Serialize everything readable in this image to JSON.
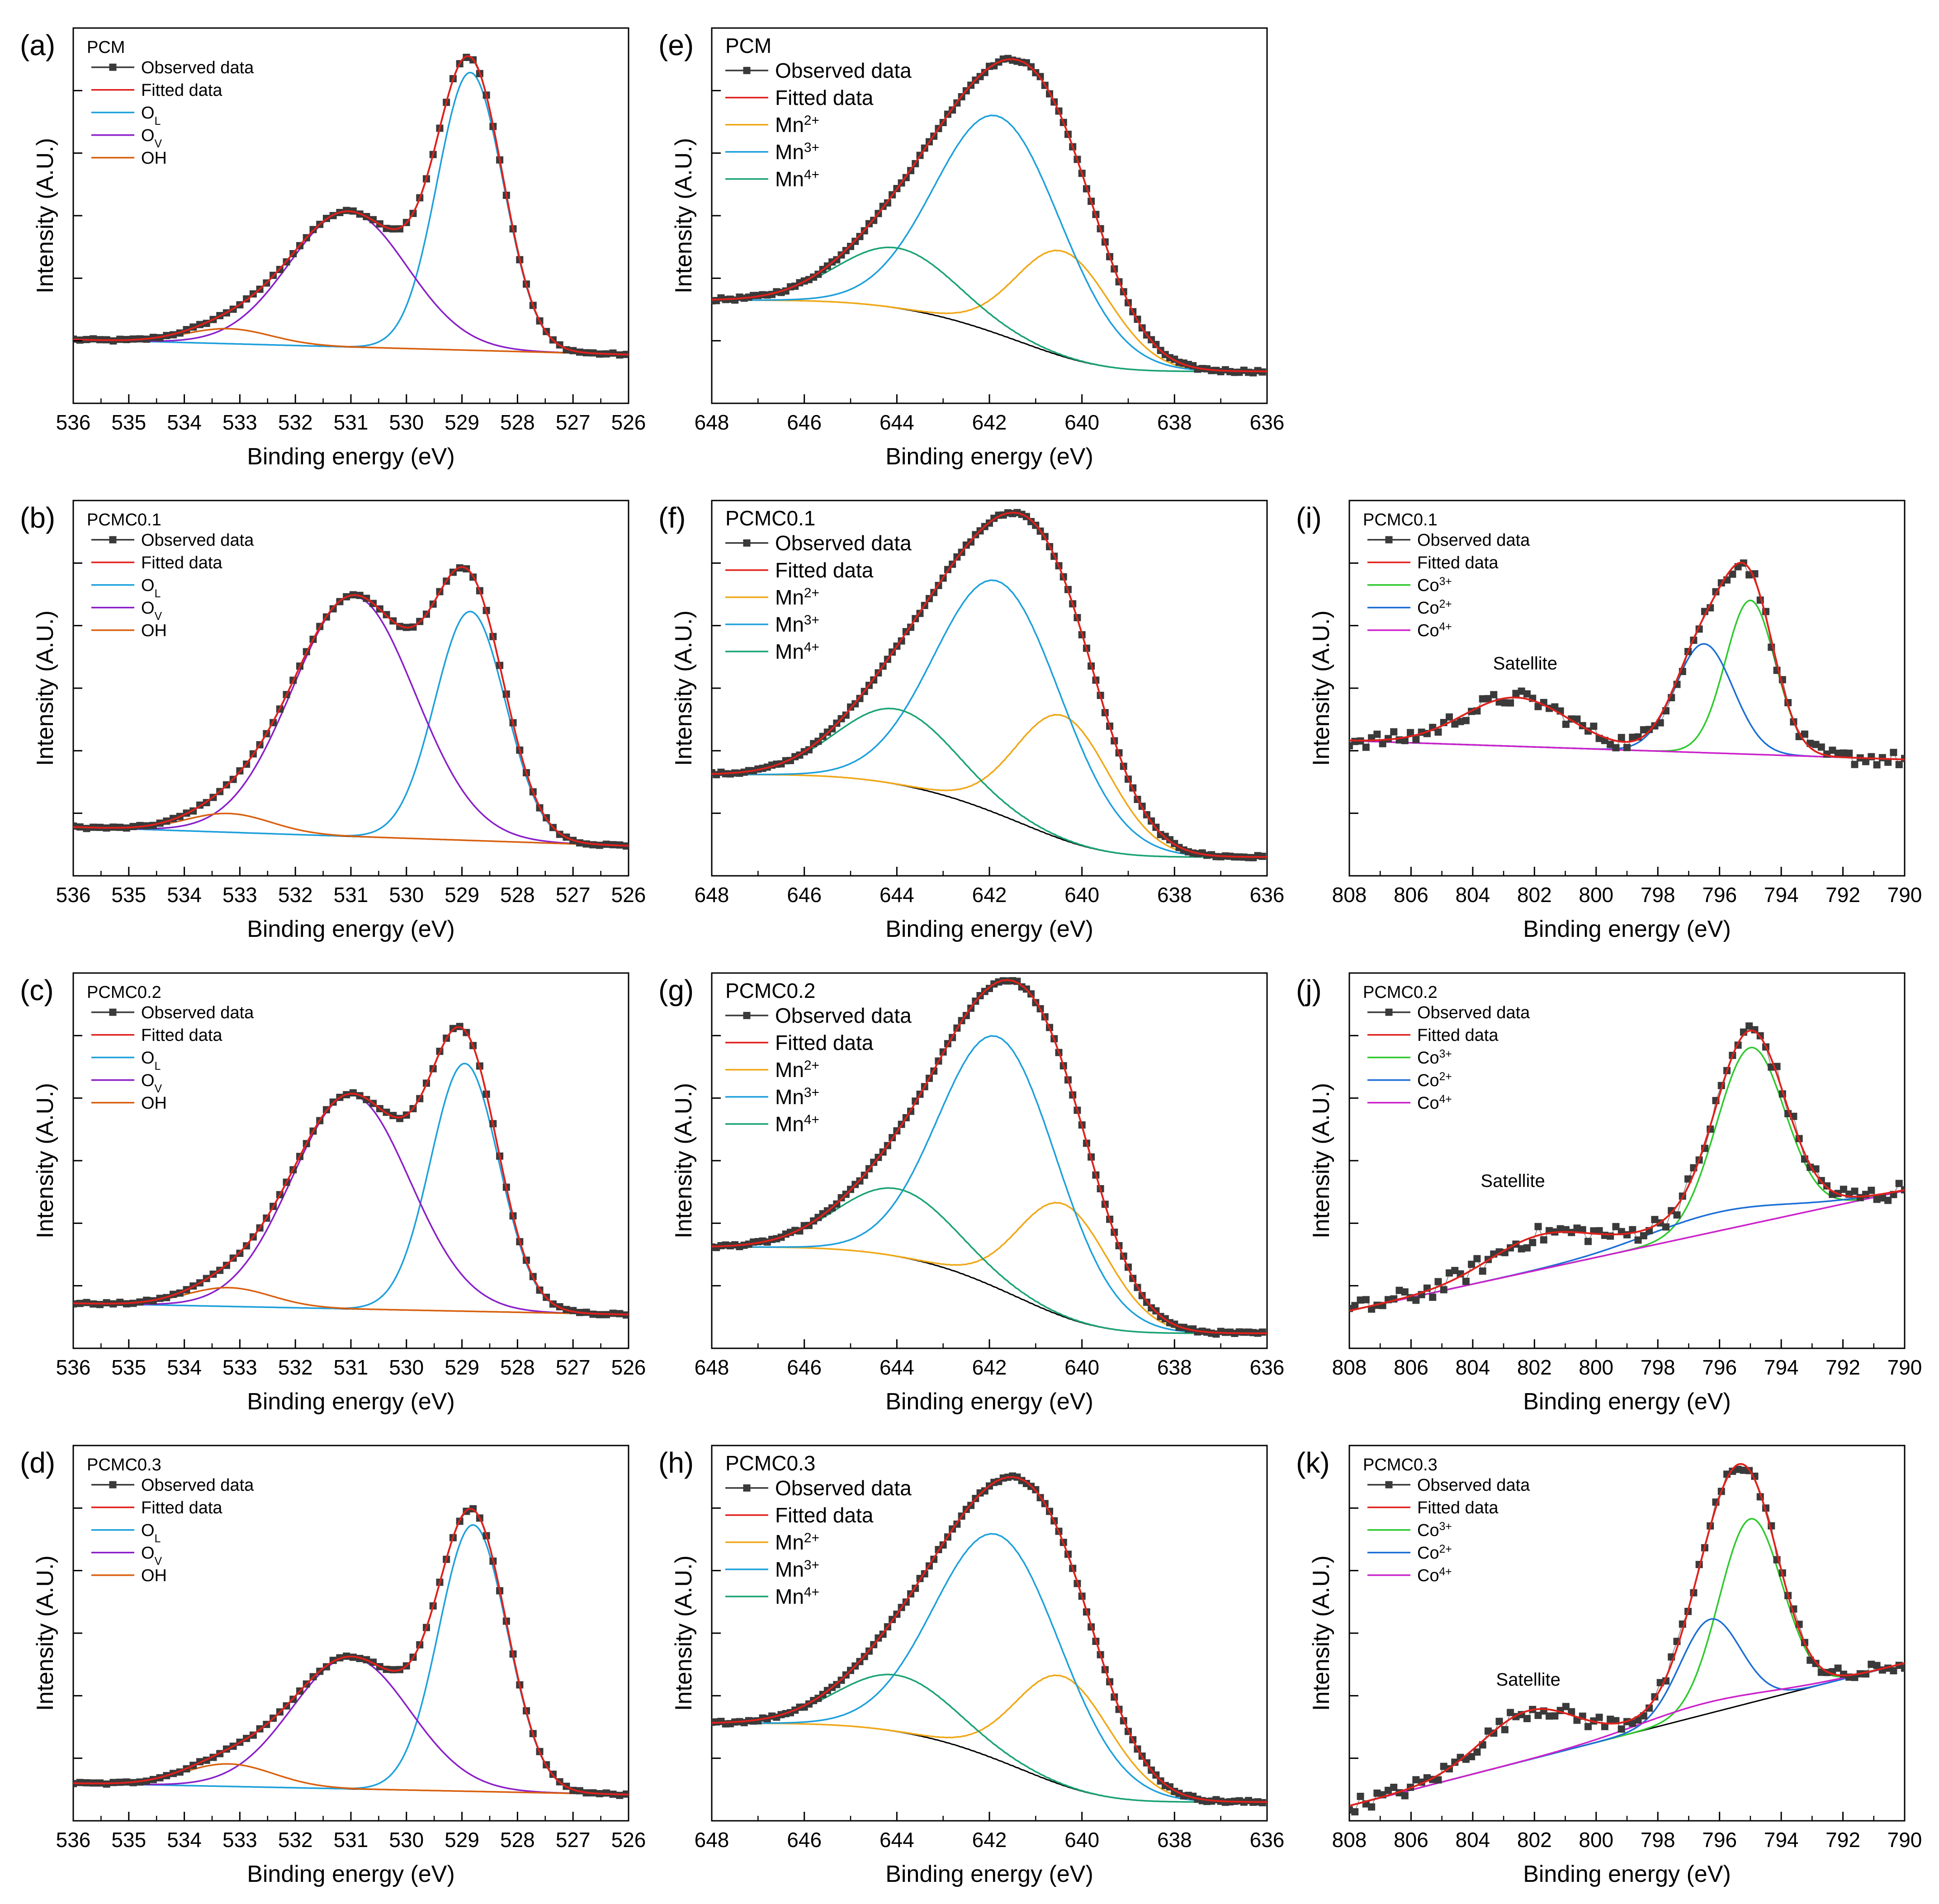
{
  "figure": {
    "x_axis_title": "Binding energy (eV)",
    "y_axis_title": "Intensity (A.U.)"
  },
  "legend_styles": {
    "Observed data": {
      "color": "#3a3a3a",
      "marker": true
    },
    "Fitted data": {
      "color": "#e0211c"
    },
    "O_L": {
      "color": "#1ea0dc"
    },
    "O_V": {
      "color": "#8a1fc9"
    },
    "OH": {
      "color": "#d9600f"
    },
    "Mn2+": {
      "color": "#f0a818"
    },
    "Mn3+": {
      "color": "#1ea0dc"
    },
    "Mn4+": {
      "color": "#1aa372"
    },
    "Co3+": {
      "color": "#2ec92e"
    },
    "Co2+": {
      "color": "#1c6ed6"
    },
    "Co4+": {
      "color": "#cc22cc"
    },
    "Background": {
      "color": "#000000"
    }
  },
  "chart_data": [
    {
      "panel_label": "(a)",
      "sample": "PCM",
      "type": "line",
      "xlim": [
        536,
        526
      ],
      "ylim": [
        0,
        1
      ],
      "xticks": [
        536,
        535,
        534,
        533,
        532,
        531,
        530,
        529,
        528,
        527,
        526
      ],
      "legend": [
        {
          "text": "Observed data",
          "style": "Observed data"
        },
        {
          "text": "Fitted data",
          "style": "Fitted data"
        },
        {
          "text": "O",
          "sub": "L",
          "style": "O_L"
        },
        {
          "text": "O",
          "sub": "V",
          "style": "O_V"
        },
        {
          "text": "OH",
          "style": "OH"
        }
      ],
      "background": {
        "type": "linear",
        "x": [
          536,
          526
        ],
        "y": [
          0.17,
          0.13
        ]
      },
      "components": [
        {
          "name": "O_L",
          "center": 528.85,
          "amplitude": 0.74,
          "fwhm": 1.4
        },
        {
          "name": "O_V",
          "center": 531.05,
          "amplitude": 0.36,
          "fwhm": 2.5
        },
        {
          "name": "OH",
          "center": 533.2,
          "amplitude": 0.04,
          "fwhm": 1.8
        }
      ],
      "noise": 0.003,
      "observed_step": 0.12
    },
    {
      "panel_label": "(b)",
      "sample": "PCMC0.1",
      "type": "line",
      "xlim": [
        536,
        526
      ],
      "ylim": [
        0,
        1
      ],
      "xticks": [
        536,
        535,
        534,
        533,
        532,
        531,
        530,
        529,
        528,
        527,
        526
      ],
      "legend": [
        {
          "text": "Observed data",
          "style": "Observed data"
        },
        {
          "text": "Fitted data",
          "style": "Fitted data"
        },
        {
          "text": "O",
          "sub": "L",
          "style": "O_L"
        },
        {
          "text": "O",
          "sub": "V",
          "style": "O_V"
        },
        {
          "text": "OH",
          "style": "OH"
        }
      ],
      "background": {
        "type": "linear",
        "x": [
          536,
          526
        ],
        "y": [
          0.13,
          0.08
        ]
      },
      "components": [
        {
          "name": "O_L",
          "center": 528.85,
          "amplitude": 0.61,
          "fwhm": 1.5
        },
        {
          "name": "O_V",
          "center": 530.95,
          "amplitude": 0.64,
          "fwhm": 2.6
        },
        {
          "name": "OH",
          "center": 533.2,
          "amplitude": 0.05,
          "fwhm": 1.8
        }
      ],
      "noise": 0.003,
      "observed_step": 0.12
    },
    {
      "panel_label": "(c)",
      "sample": "PCMC0.2",
      "type": "line",
      "xlim": [
        536,
        526
      ],
      "ylim": [
        0,
        1
      ],
      "xticks": [
        536,
        535,
        534,
        533,
        532,
        531,
        530,
        529,
        528,
        527,
        526
      ],
      "legend": [
        {
          "text": "Observed data",
          "style": "Observed data"
        },
        {
          "text": "Fitted data",
          "style": "Fitted data"
        },
        {
          "text": "O",
          "sub": "L",
          "style": "O_L"
        },
        {
          "text": "O",
          "sub": "V",
          "style": "O_V"
        },
        {
          "text": "OH",
          "style": "OH"
        }
      ],
      "background": {
        "type": "linear",
        "x": [
          536,
          526
        ],
        "y": [
          0.12,
          0.09
        ]
      },
      "components": [
        {
          "name": "O_L",
          "center": 528.95,
          "amplitude": 0.66,
          "fwhm": 1.45
        },
        {
          "name": "O_V",
          "center": 531.0,
          "amplitude": 0.57,
          "fwhm": 2.5
        },
        {
          "name": "OH",
          "center": 533.2,
          "amplitude": 0.05,
          "fwhm": 1.8
        }
      ],
      "noise": 0.003,
      "observed_step": 0.12
    },
    {
      "panel_label": "(d)",
      "sample": "PCMC0.3",
      "type": "line",
      "xlim": [
        536,
        526
      ],
      "ylim": [
        0,
        1
      ],
      "xticks": [
        536,
        535,
        534,
        533,
        532,
        531,
        530,
        529,
        528,
        527,
        526
      ],
      "legend": [
        {
          "text": "Observed data",
          "style": "Observed data"
        },
        {
          "text": "Fitted data",
          "style": "Fitted data"
        },
        {
          "text": "O",
          "sub": "L",
          "style": "O_L"
        },
        {
          "text": "O",
          "sub": "V",
          "style": "O_V"
        },
        {
          "text": "OH",
          "style": "OH"
        }
      ],
      "background": {
        "type": "linear",
        "x": [
          536,
          526
        ],
        "y": [
          0.1,
          0.07
        ]
      },
      "components": [
        {
          "name": "O_L",
          "center": 528.8,
          "amplitude": 0.71,
          "fwhm": 1.45
        },
        {
          "name": "O_V",
          "center": 531.0,
          "amplitude": 0.35,
          "fwhm": 2.5
        },
        {
          "name": "OH",
          "center": 533.2,
          "amplitude": 0.06,
          "fwhm": 1.9
        }
      ],
      "noise": 0.003,
      "observed_step": 0.12
    },
    {
      "panel_label": "(e)",
      "sample": "PCM",
      "type": "line",
      "xlim": [
        648,
        636
      ],
      "ylim": [
        0,
        1
      ],
      "xticks": [
        648,
        646,
        644,
        642,
        640,
        638,
        636
      ],
      "legend": [
        {
          "text": "Observed data",
          "style": "Observed data"
        },
        {
          "text": "Fitted data",
          "style": "Fitted data"
        },
        {
          "text": "Mn",
          "sup": "2+",
          "style": "Mn2+"
        },
        {
          "text": "Mn",
          "sup": "3+",
          "style": "Mn3+"
        },
        {
          "text": "Mn",
          "sup": "4+",
          "style": "Mn4+"
        }
      ],
      "background": {
        "type": "shirley",
        "high": 0.275,
        "low": 0.085,
        "x_low": 636.3
      },
      "components": [
        {
          "name": "Mn2+",
          "center": 640.4,
          "amplitude": 0.28,
          "fwhm": 2.4
        },
        {
          "name": "Mn3+",
          "center": 641.8,
          "amplitude": 0.58,
          "fwhm": 3.2
        },
        {
          "name": "Mn4+",
          "center": 644.0,
          "amplitude": 0.16,
          "fwhm": 3.0
        }
      ],
      "noise": 0.004,
      "observed_step": 0.1
    },
    {
      "panel_label": "(f)",
      "sample": "PCMC0.1",
      "type": "line",
      "xlim": [
        648,
        636
      ],
      "ylim": [
        0,
        1
      ],
      "xticks": [
        648,
        646,
        644,
        642,
        640,
        638,
        636
      ],
      "legend": [
        {
          "text": "Observed data",
          "style": "Observed data"
        },
        {
          "text": "Fitted data",
          "style": "Fitted data"
        },
        {
          "text": "Mn",
          "sup": "2+",
          "style": "Mn2+"
        },
        {
          "text": "Mn",
          "sup": "3+",
          "style": "Mn3+"
        },
        {
          "text": "Mn",
          "sup": "4+",
          "style": "Mn4+"
        }
      ],
      "background": {
        "type": "shirley",
        "high": 0.27,
        "low": 0.05,
        "x_low": 636.3
      },
      "components": [
        {
          "name": "Mn2+",
          "center": 640.4,
          "amplitude": 0.33,
          "fwhm": 2.4
        },
        {
          "name": "Mn3+",
          "center": 641.8,
          "amplitude": 0.62,
          "fwhm": 3.2
        },
        {
          "name": "Mn4+",
          "center": 644.0,
          "amplitude": 0.2,
          "fwhm": 3.0
        }
      ],
      "noise": 0.004,
      "observed_step": 0.1
    },
    {
      "panel_label": "(g)",
      "sample": "PCMC0.2",
      "type": "line",
      "xlim": [
        648,
        636
      ],
      "ylim": [
        0,
        1
      ],
      "xticks": [
        648,
        646,
        644,
        642,
        640,
        638,
        636
      ],
      "legend": [
        {
          "text": "Observed data",
          "style": "Observed data"
        },
        {
          "text": "Fitted data",
          "style": "Fitted data"
        },
        {
          "text": "Mn",
          "sup": "2+",
          "style": "Mn2+"
        },
        {
          "text": "Mn",
          "sup": "3+",
          "style": "Mn3+"
        },
        {
          "text": "Mn",
          "sup": "4+",
          "style": "Mn4+"
        }
      ],
      "background": {
        "type": "shirley",
        "high": 0.27,
        "low": 0.04,
        "x_low": 636.3
      },
      "components": [
        {
          "name": "Mn2+",
          "center": 640.4,
          "amplitude": 0.3,
          "fwhm": 2.3
        },
        {
          "name": "Mn3+",
          "center": 641.8,
          "amplitude": 0.67,
          "fwhm": 3.0
        },
        {
          "name": "Mn4+",
          "center": 644.0,
          "amplitude": 0.18,
          "fwhm": 3.0
        }
      ],
      "noise": 0.004,
      "observed_step": 0.1
    },
    {
      "panel_label": "(h)",
      "sample": "PCMC0.3",
      "type": "line",
      "xlim": [
        648,
        636
      ],
      "ylim": [
        0,
        1
      ],
      "xticks": [
        648,
        646,
        644,
        642,
        640,
        638,
        636
      ],
      "legend": [
        {
          "text": "Observed data",
          "style": "Observed data"
        },
        {
          "text": "Fitted data",
          "style": "Fitted data"
        },
        {
          "text": "Mn",
          "sup": "2+",
          "style": "Mn2+"
        },
        {
          "text": "Mn",
          "sup": "3+",
          "style": "Mn3+"
        },
        {
          "text": "Mn",
          "sup": "4+",
          "style": "Mn4+"
        }
      ],
      "background": {
        "type": "shirley",
        "high": 0.26,
        "low": 0.05,
        "x_low": 636.3
      },
      "components": [
        {
          "name": "Mn2+",
          "center": 640.4,
          "amplitude": 0.29,
          "fwhm": 2.4
        },
        {
          "name": "Mn3+",
          "center": 641.8,
          "amplitude": 0.6,
          "fwhm": 3.2
        },
        {
          "name": "Mn4+",
          "center": 644.0,
          "amplitude": 0.15,
          "fwhm": 3.0
        }
      ],
      "noise": 0.004,
      "observed_step": 0.1
    },
    {
      "panel_label": "(i)",
      "sample": "PCMC0.1",
      "type": "line",
      "xlim": [
        808,
        790
      ],
      "ylim": [
        0,
        1
      ],
      "xticks": [
        808,
        806,
        804,
        802,
        800,
        798,
        796,
        794,
        792,
        790
      ],
      "legend": [
        {
          "text": "Observed data",
          "style": "Observed data"
        },
        {
          "text": "Fitted data",
          "style": "Fitted data"
        },
        {
          "text": "Co",
          "sup": "3+",
          "style": "Co3+"
        },
        {
          "text": "Co",
          "sup": "2+",
          "style": "Co2+"
        },
        {
          "text": "Co",
          "sup": "4+",
          "style": "Co4+"
        }
      ],
      "annotation": {
        "text": "Satellite",
        "x": 802.3,
        "y": 0.55
      },
      "background": {
        "type": "linear",
        "x": [
          808,
          790
        ],
        "y": [
          0.36,
          0.31
        ]
      },
      "components": [
        {
          "name": "Co3+",
          "center": 795.0,
          "amplitude": 0.41,
          "fwhm": 1.9
        },
        {
          "name": "Co2+",
          "center": 796.5,
          "amplitude": 0.29,
          "fwhm": 2.2
        },
        {
          "name": "Co4+",
          "center": 797.5,
          "amplitude": 0.0,
          "fwhm": 2.0
        },
        {
          "name": "Satellite",
          "center": 802.6,
          "amplitude": 0.13,
          "fwhm": 4.0,
          "fit_only": true
        }
      ],
      "noise": 0.02,
      "observed_step": 0.18
    },
    {
      "panel_label": "(j)",
      "sample": "PCMC0.2",
      "type": "line",
      "xlim": [
        808,
        790
      ],
      "ylim": [
        0,
        1
      ],
      "xticks": [
        808,
        806,
        804,
        802,
        800,
        798,
        796,
        794,
        792,
        790
      ],
      "legend": [
        {
          "text": "Observed data",
          "style": "Observed data"
        },
        {
          "text": "Fitted data",
          "style": "Fitted data"
        },
        {
          "text": "Co",
          "sup": "3+",
          "style": "Co3+"
        },
        {
          "text": "Co",
          "sup": "2+",
          "style": "Co2+"
        },
        {
          "text": "Co",
          "sup": "4+",
          "style": "Co4+"
        }
      ],
      "annotation": {
        "text": "Satellite",
        "x": 802.7,
        "y": 0.43
      },
      "background": {
        "type": "linear",
        "x": [
          808,
          790
        ],
        "y": [
          0.1,
          0.42
        ]
      },
      "components": [
        {
          "name": "Co3+",
          "center": 795.0,
          "amplitude": 0.47,
          "fwhm": 2.6
        },
        {
          "name": "Co2+",
          "center": 796.0,
          "amplitude": 0.05,
          "fwhm": 5.5
        },
        {
          "name": "Co4+",
          "center": 797.5,
          "amplitude": 0.0,
          "fwhm": 2.0
        },
        {
          "name": "Satellite",
          "center": 801.8,
          "amplitude": 0.09,
          "fwhm": 4.0,
          "fit_only": true
        }
      ],
      "noise": 0.025,
      "observed_step": 0.18
    },
    {
      "panel_label": "(k)",
      "sample": "PCMC0.3",
      "type": "line",
      "xlim": [
        808,
        790
      ],
      "ylim": [
        0,
        1
      ],
      "xticks": [
        808,
        806,
        804,
        802,
        800,
        798,
        796,
        794,
        792,
        790
      ],
      "legend": [
        {
          "text": "Observed data",
          "style": "Observed data"
        },
        {
          "text": "Fitted data",
          "style": "Fitted data"
        },
        {
          "text": "Co",
          "sup": "3+",
          "style": "Co3+"
        },
        {
          "text": "Co",
          "sup": "2+",
          "style": "Co2+"
        },
        {
          "text": "Co",
          "sup": "4+",
          "style": "Co4+"
        }
      ],
      "annotation": {
        "text": "Satellite",
        "x": 802.2,
        "y": 0.36
      },
      "background": {
        "type": "linear",
        "x": [
          808,
          790
        ],
        "y": [
          0.04,
          0.42
        ]
      },
      "components": [
        {
          "name": "Co3+",
          "center": 795.0,
          "amplitude": 0.49,
          "fwhm": 2.4
        },
        {
          "name": "Co2+",
          "center": 796.3,
          "amplitude": 0.25,
          "fwhm": 2.3
        },
        {
          "name": "Co4+",
          "center": 796.5,
          "amplitude": 0.03,
          "fwhm": 5.0
        },
        {
          "name": "Satellite",
          "center": 802.2,
          "amplitude": 0.13,
          "fwhm": 3.6,
          "fit_only": true
        }
      ],
      "noise": 0.02,
      "observed_step": 0.18
    }
  ]
}
